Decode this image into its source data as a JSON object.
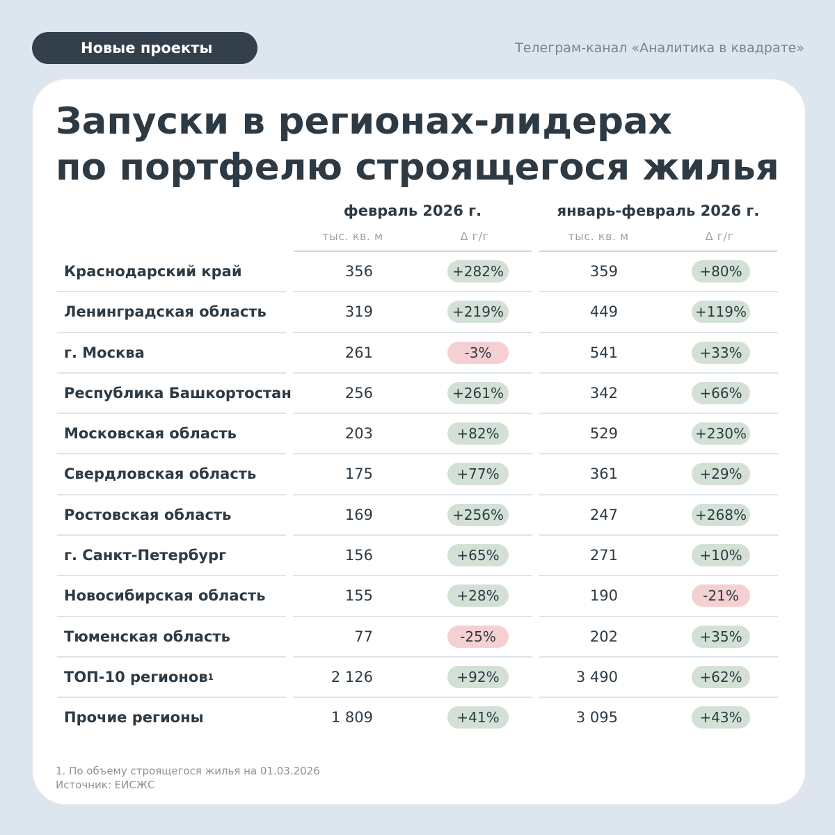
{
  "header": {
    "tag": "Новые проекты",
    "channel": "Телеграм-канал «Аналитика в квадрате»"
  },
  "title": {
    "line1": "Запуски в регионах-лидерах",
    "line2": "по портфелю строящегося жилья"
  },
  "columns": {
    "period1": "февраль 2026 г.",
    "period2": "январь-февраль 2026 г.",
    "unit": "тыс. кв. м",
    "delta": "Δ г/г"
  },
  "rows": [
    {
      "name": "Краснодарский край",
      "sup": "",
      "v1": "356",
      "d1": "+282%",
      "d1_neg": false,
      "v2": "359",
      "d2": "+80%",
      "d2_neg": false
    },
    {
      "name": "Ленинградская область",
      "sup": "",
      "v1": "319",
      "d1": "+219%",
      "d1_neg": false,
      "v2": "449",
      "d2": "+119%",
      "d2_neg": false
    },
    {
      "name": "г. Москва",
      "sup": "",
      "v1": "261",
      "d1": "-3%",
      "d1_neg": true,
      "v2": "541",
      "d2": "+33%",
      "d2_neg": false
    },
    {
      "name": "Республика Башкортостан",
      "sup": "",
      "v1": "256",
      "d1": "+261%",
      "d1_neg": false,
      "v2": "342",
      "d2": "+66%",
      "d2_neg": false
    },
    {
      "name": "Московская область",
      "sup": "",
      "v1": "203",
      "d1": "+82%",
      "d1_neg": false,
      "v2": "529",
      "d2": "+230%",
      "d2_neg": false
    },
    {
      "name": "Свердловская область",
      "sup": "",
      "v1": "175",
      "d1": "+77%",
      "d1_neg": false,
      "v2": "361",
      "d2": "+29%",
      "d2_neg": false
    },
    {
      "name": "Ростовская область",
      "sup": "",
      "v1": "169",
      "d1": "+256%",
      "d1_neg": false,
      "v2": "247",
      "d2": "+268%",
      "d2_neg": false
    },
    {
      "name": "г. Санкт-Петербург",
      "sup": "",
      "v1": "156",
      "d1": "+65%",
      "d1_neg": false,
      "v2": "271",
      "d2": "+10%",
      "d2_neg": false
    },
    {
      "name": "Новосибирская область",
      "sup": "",
      "v1": "155",
      "d1": "+28%",
      "d1_neg": false,
      "v2": "190",
      "d2": "-21%",
      "d2_neg": true
    },
    {
      "name": "Тюменская область",
      "sup": "",
      "v1": "77",
      "d1": "-25%",
      "d1_neg": true,
      "v2": "202",
      "d2": "+35%",
      "d2_neg": false
    },
    {
      "name": "ТОП-10 регионов",
      "sup": "1",
      "v1": "2 126",
      "d1": "+92%",
      "d1_neg": false,
      "v2": "3 490",
      "d2": "+62%",
      "d2_neg": false
    },
    {
      "name": "Прочие регионы",
      "sup": "",
      "v1": "1 809",
      "d1": "+41%",
      "d1_neg": false,
      "v2": "3 095",
      "d2": "+43%",
      "d2_neg": false
    }
  ],
  "footnote": {
    "note": "1. По объему строящегося жилья на 01.03.2026",
    "source": "Источник: ЕИСЖС"
  },
  "colors": {
    "positive_pill": "#d3e0d6",
    "negative_pill": "#f5d0d3",
    "tag_bg": "#33404b",
    "page_bg": "#dde5ee"
  }
}
